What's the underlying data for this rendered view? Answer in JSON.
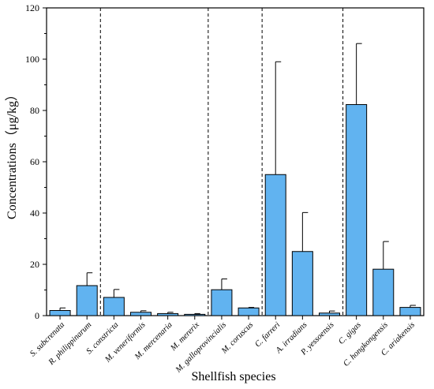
{
  "chart_data": {
    "type": "bar",
    "title": "",
    "xlabel": "Shellfish  species",
    "ylabel": "Concentrations（μg/kg）",
    "ylim": [
      0,
      120
    ],
    "yticks": [
      0,
      20,
      40,
      60,
      80,
      100,
      120
    ],
    "grid": false,
    "legend": "none",
    "categories": [
      "S. subcrenata",
      "R. philippinarum",
      "S. constricta",
      "M. veneriformis",
      "M. mercenaria",
      "M. mererix",
      "M. galloprovincialis",
      "M. coruscus",
      "C. farreri",
      "A. irradians",
      "P. yessoensis",
      "C. gigas",
      "C. hongkongensis",
      "C. ariakensis"
    ],
    "values": [
      2.0,
      11.7,
      7.1,
      1.3,
      0.8,
      0.5,
      10.1,
      3.0,
      55.0,
      25.0,
      1.0,
      82.3,
      18.1,
      3.2
    ],
    "errors": [
      1.0,
      5.0,
      3.1,
      0.6,
      0.5,
      0.3,
      4.2,
      0.2,
      44.0,
      15.2,
      0.8,
      23.8,
      10.8,
      0.8
    ],
    "group_dividers_after_index": [
      1,
      5,
      7,
      10
    ],
    "bar_color": "#61b3f0",
    "bar_edge_color": "#000000"
  }
}
